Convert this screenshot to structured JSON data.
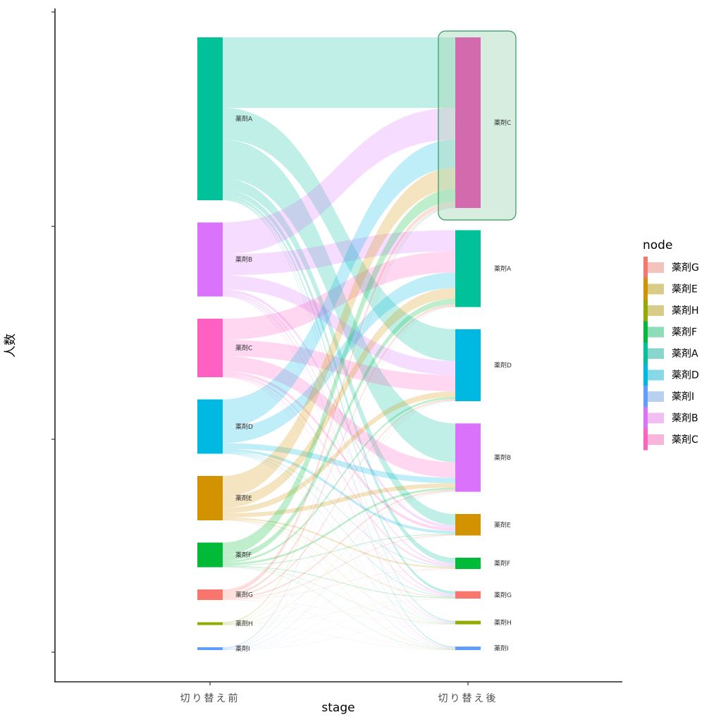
{
  "chart_data": {
    "type": "sankey",
    "title": "",
    "xlabel": "stage",
    "ylabel": "人数",
    "x_categories": [
      "切り替え前",
      "切り替え後"
    ],
    "y_ticks_labeled": false,
    "nodes_order_left": [
      "薬剤A",
      "薬剤B",
      "薬剤C",
      "薬剤D",
      "薬剤E",
      "薬剤F",
      "薬剤G",
      "薬剤H",
      "薬剤I"
    ],
    "nodes_order_right": [
      "薬剤C",
      "薬剤A",
      "薬剤D",
      "薬剤B",
      "薬剤E",
      "薬剤F",
      "薬剤G",
      "薬剤H",
      "薬剤I"
    ],
    "node_colors": {
      "薬剤A": "#00C19A",
      "薬剤B": "#DB72FB",
      "薬剤C": "#FF61C3",
      "薬剤D": "#00B9E3",
      "薬剤E": "#D39200",
      "薬剤F": "#00BA38",
      "薬剤G": "#F8766D",
      "薬剤H": "#93AA00",
      "薬剤I": "#619CFF"
    },
    "highlight": {
      "stage": "切り替え後",
      "node": "薬剤C",
      "fill_override": "#D36AAE",
      "box_color": "#2E9B5B"
    },
    "flows": [
      {
        "from": "薬剤A",
        "to": [
          "薬剤C",
          "薬剤A",
          "薬剤D",
          "薬剤B",
          "薬剤E",
          "薬剤F",
          "薬剤G",
          "薬剤H",
          "薬剤I"
        ],
        "values": [
          100,
          0,
          45,
          55,
          16,
          8,
          4,
          1.5,
          1.5
        ]
      },
      {
        "from": "薬剤B",
        "to": [
          "薬剤C",
          "薬剤A",
          "薬剤D",
          "薬剤B",
          "薬剤E",
          "薬剤F",
          "薬剤G",
          "薬剤H",
          "薬剤I"
        ],
        "values": [
          45,
          30,
          20,
          0,
          4,
          2,
          2,
          1,
          1
        ]
      },
      {
        "from": "薬剤C",
        "to": [
          "薬剤C",
          "薬剤A",
          "薬剤D",
          "薬剤B",
          "薬剤E",
          "薬剤F",
          "薬剤G",
          "薬剤H",
          "薬剤I"
        ],
        "values": [
          0,
          30,
          23,
          22,
          4,
          2,
          1,
          0.5,
          0.5
        ]
      },
      {
        "from": "薬剤D",
        "to": [
          "薬剤C",
          "薬剤A",
          "薬剤D",
          "薬剤B",
          "薬剤E",
          "薬剤F",
          "薬剤G",
          "薬剤H",
          "薬剤I"
        ],
        "values": [
          40,
          22,
          0,
          8,
          4,
          1,
          1,
          0.5,
          0.5
        ]
      },
      {
        "from": "薬剤E",
        "to": [
          "薬剤C",
          "薬剤A",
          "薬剤D",
          "薬剤B",
          "薬剤E",
          "薬剤F",
          "薬剤G",
          "薬剤H",
          "薬剤I"
        ],
        "values": [
          30,
          15,
          8,
          6,
          0,
          2,
          1,
          0.5,
          0.5
        ]
      },
      {
        "from": "薬剤F",
        "to": [
          "薬剤C",
          "薬剤A",
          "薬剤D",
          "薬剤B",
          "薬剤E",
          "薬剤F",
          "薬剤G",
          "薬剤H",
          "薬剤I"
        ],
        "values": [
          18,
          8,
          3,
          3,
          1,
          0,
          1,
          0.5,
          0.5
        ]
      },
      {
        "from": "薬剤G",
        "to": [
          "薬剤C",
          "薬剤A",
          "薬剤D",
          "薬剤B",
          "薬剤E",
          "薬剤F",
          "薬剤G",
          "薬剤H",
          "薬剤I"
        ],
        "values": [
          6,
          3,
          2,
          2,
          1,
          0.5,
          0,
          0.25,
          0.25
        ]
      },
      {
        "from": "薬剤H",
        "to": [
          "薬剤C",
          "薬剤A",
          "薬剤D",
          "薬剤B",
          "薬剤E",
          "薬剤F",
          "薬剤G",
          "薬剤H",
          "薬剤I"
        ],
        "values": [
          1.5,
          0.5,
          0.5,
          0.5,
          0.25,
          0.25,
          0.25,
          0,
          0.25
        ]
      },
      {
        "from": "薬剤I",
        "to": [
          "薬剤C",
          "薬剤A",
          "薬剤D",
          "薬剤B",
          "薬剤E",
          "薬剤F",
          "薬剤G",
          "薬剤H",
          "薬剤I"
        ],
        "values": [
          1.5,
          0.5,
          0.5,
          0.5,
          0.25,
          0.25,
          0.25,
          0.25,
          0
        ]
      }
    ],
    "legend": {
      "title": "node",
      "position": "right",
      "entries": [
        "薬剤G",
        "薬剤E",
        "薬剤H",
        "薬剤F",
        "薬剤A",
        "薬剤D",
        "薬剤I",
        "薬剤B",
        "薬剤C"
      ],
      "swatch_colors": [
        "#F2C3BC",
        "#D9CC88",
        "#D9CC88",
        "#8EDDB8",
        "#88D6CC",
        "#88D9E8",
        "#B9D0EE",
        "#F1BEF0",
        "#F7B5DC"
      ]
    },
    "grid": false
  }
}
